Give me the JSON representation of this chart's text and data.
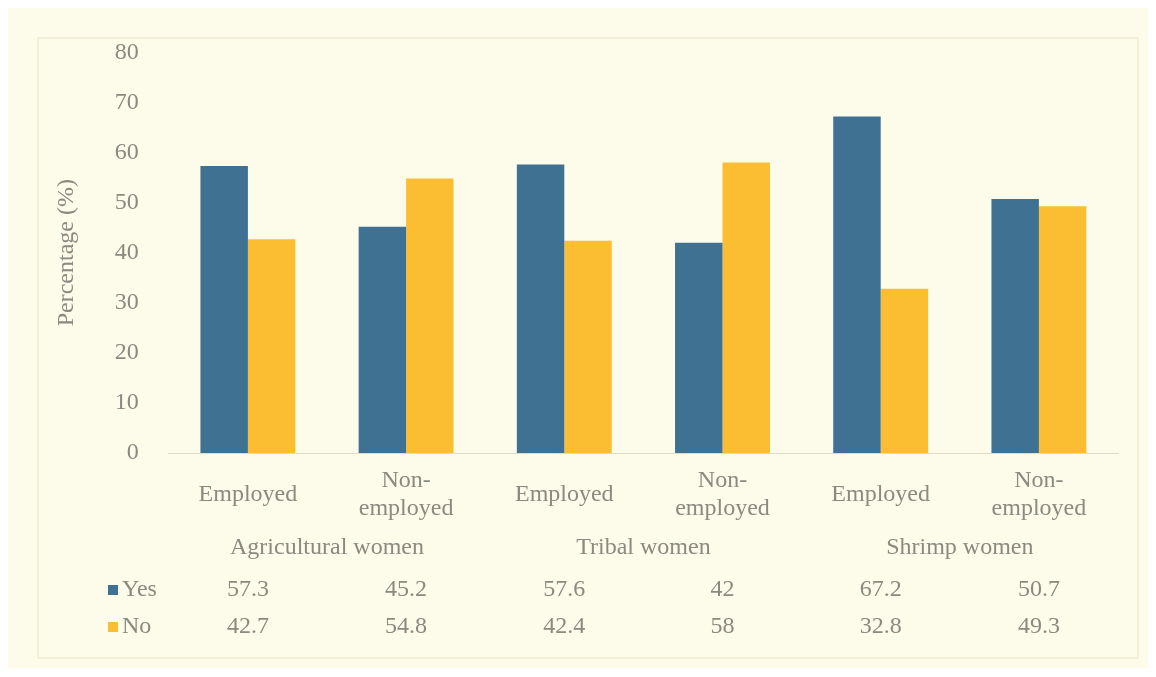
{
  "chart_data": {
    "type": "bar",
    "ylabel": "Percentage (%)",
    "categories": [
      "Employed",
      "Non-employed",
      "Employed",
      "Non-employed",
      "Employed",
      "Non-employed"
    ],
    "annotations": [
      "Agricultural women",
      "Tribal women",
      "Shrimp women"
    ],
    "series": [
      {
        "name": "Yes",
        "color": "#3f7193",
        "values": [
          57.3,
          45.2,
          57.6,
          42,
          67.2,
          50.7
        ]
      },
      {
        "name": "No",
        "color": "#fbbe32",
        "values": [
          42.7,
          54.8,
          42.4,
          58,
          32.8,
          49.3
        ]
      }
    ],
    "ylim": [
      0,
      80
    ],
    "yticks": [
      0,
      10,
      20,
      30,
      40,
      50,
      60,
      70,
      80
    ],
    "grid": false,
    "data_labels": true,
    "legend": "bottom"
  }
}
